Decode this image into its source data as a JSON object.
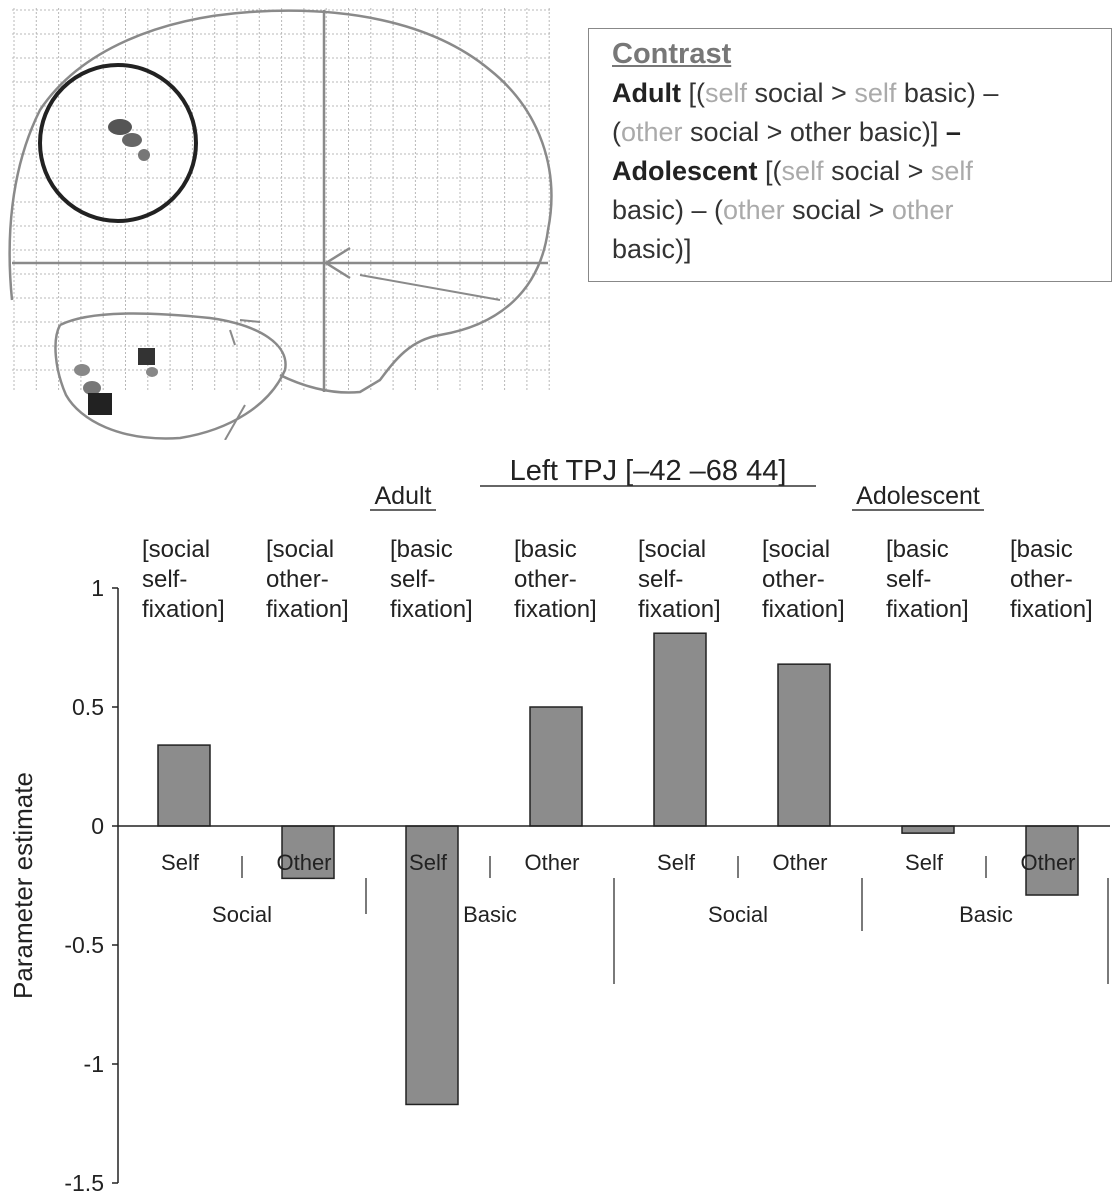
{
  "contrast": {
    "heading": "Contrast",
    "lines": [
      [
        {
          "t": "Adult",
          "s": "b"
        },
        {
          "t": " [(",
          "s": "n"
        },
        {
          "t": "self",
          "s": "l"
        },
        {
          "t": " social > ",
          "s": "n"
        },
        {
          "t": "self",
          "s": "l"
        },
        {
          "t": " basic) –",
          "s": "n"
        }
      ],
      [
        {
          "t": "(",
          "s": "n"
        },
        {
          "t": "other",
          "s": "l"
        },
        {
          "t": " social > other basic)]",
          "s": "n"
        },
        {
          "t": " –",
          "s": "b"
        }
      ],
      [
        {
          "t": "Adolescent",
          "s": "b"
        },
        {
          "t": " [(",
          "s": "n"
        },
        {
          "t": "self",
          "s": "l"
        },
        {
          "t": " social > ",
          "s": "n"
        },
        {
          "t": "self",
          "s": "l"
        }
      ],
      [
        {
          "t": "basic) – (",
          "s": "n"
        },
        {
          "t": "other",
          "s": "l"
        },
        {
          "t": " social > ",
          "s": "n"
        },
        {
          "t": "other",
          "s": "l"
        }
      ],
      [
        {
          "t": "basic)]",
          "s": "n"
        }
      ]
    ]
  },
  "chart_data": {
    "type": "bar",
    "title": "Left TPJ [–42 –68 44]",
    "ylabel": "Parameter estimate",
    "ylim": [
      -1.5,
      1
    ],
    "yticks": [
      1,
      0.5,
      0,
      -0.5,
      -1,
      -1.5
    ],
    "ytick_labels": [
      "1",
      "0.5",
      "0",
      "-0.5",
      "-1",
      "-1.5"
    ],
    "group_labels": [
      "Adult",
      "Adolescent"
    ],
    "condition_labels": [
      [
        "[social",
        "self-",
        "fixation]"
      ],
      [
        "[social",
        "other-",
        "fixation]"
      ],
      [
        "[basic",
        "self-",
        "fixation]"
      ],
      [
        "[basic",
        "other-",
        "fixation]"
      ],
      [
        "[social",
        "self-",
        "fixation]"
      ],
      [
        "[social",
        "other-",
        "fixation]"
      ],
      [
        "[basic",
        "self-",
        "fixation]"
      ],
      [
        "[basic",
        "other-",
        "fixation]"
      ]
    ],
    "categories": [
      "Self",
      "Other",
      "Self",
      "Other",
      "Self",
      "Other",
      "Self",
      "Other"
    ],
    "subgroups": [
      "Social",
      "Basic",
      "Social",
      "Basic"
    ],
    "values": [
      0.34,
      -0.22,
      -1.17,
      0.5,
      0.81,
      0.68,
      -0.03,
      -0.29
    ],
    "bar_color": "#8c8c8c",
    "grid": false,
    "legend": "none"
  }
}
